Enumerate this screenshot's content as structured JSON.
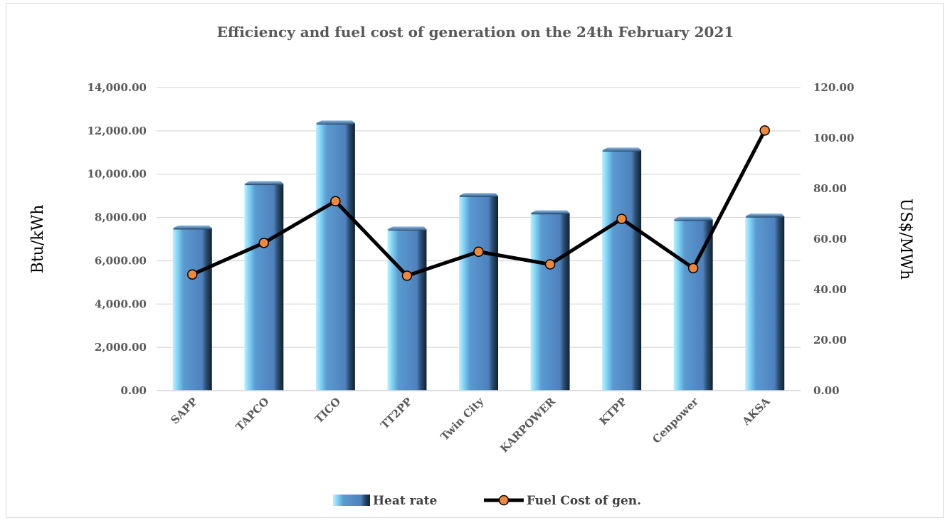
{
  "chart_data": {
    "type": "bar+line",
    "title": "Efficiency and fuel cost of generation on the 24th February 2021",
    "categories": [
      "SAPP",
      "TAPCO",
      "TICO",
      "TT2PP",
      "Twin City",
      "KARPOWER",
      "KTPP",
      "Cenpower",
      "AKSA"
    ],
    "y_left": {
      "label": "Btu/kWh",
      "ylim": [
        0,
        14000
      ],
      "ticks": [
        "0.00",
        "2,000.00",
        "4,000.00",
        "6,000.00",
        "8,000.00",
        "10,000.00",
        "12,000.00",
        "14,000.00"
      ]
    },
    "y_right": {
      "label": "US$/MWh",
      "ylim": [
        0,
        120
      ],
      "ticks": [
        "0.00",
        "20.00",
        "40.00",
        "60.00",
        "80.00",
        "100.00",
        "120.00"
      ]
    },
    "series": [
      {
        "name": "Heat rate",
        "type": "bar",
        "axis": "left",
        "color": "#4f81bd",
        "values": [
          7500,
          9550,
          12350,
          7450,
          9000,
          8200,
          11100,
          7900,
          8050
        ]
      },
      {
        "name": "Fuel Cost of gen.",
        "type": "line",
        "axis": "right",
        "color": "#000000",
        "marker_color": "#f0883a",
        "values": [
          46,
          58.5,
          75,
          45.5,
          55,
          50,
          68,
          48.5,
          103
        ]
      }
    ],
    "grid": true,
    "legend_position": "bottom"
  }
}
